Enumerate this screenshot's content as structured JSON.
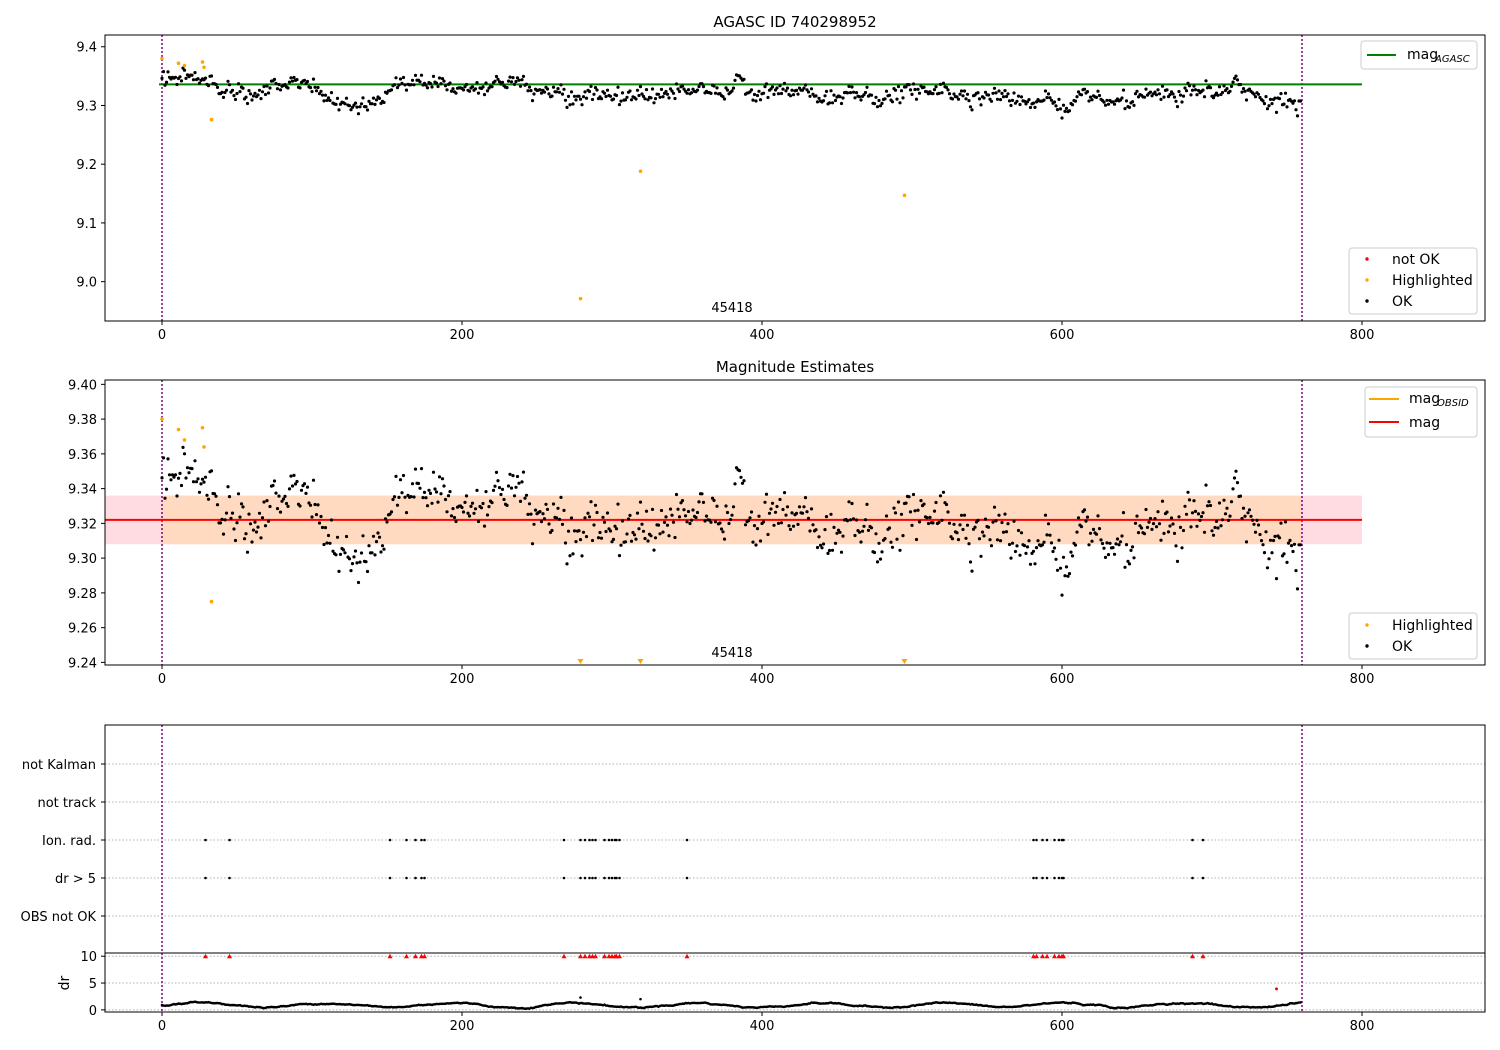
{
  "figure": {
    "panel1_title": "AGASC ID 740298952",
    "panel2_title": "Magnitude Estimates",
    "obsid_label": "45418",
    "colors": {
      "ok": "#000000",
      "highlighted": "#ffa500",
      "not_ok": "#ff0000",
      "mag_agasc": "#008000",
      "mag_obsid": "#ffa500",
      "mag": "#ff0000",
      "band": "#ffc0cb",
      "band_inner": "#ffdab9",
      "obs_boundary": "#800080"
    }
  },
  "legend1": {
    "line_label": "mag",
    "line_sub": "AGASC",
    "markers": [
      "not OK",
      "Highlighted",
      "OK"
    ]
  },
  "legend2": {
    "line1_label": "mag",
    "line1_sub": "OBSID",
    "line2_label": "mag",
    "markers": [
      "Highlighted",
      "OK"
    ]
  },
  "chart_data": [
    {
      "type": "scatter",
      "title": "AGASC ID 740298952",
      "x_ticks": [
        0,
        200,
        400,
        600,
        800
      ],
      "y_ticks": [
        "9.0",
        "9.1",
        "9.2",
        "9.3",
        "9.4"
      ],
      "xlim": [
        -38,
        882
      ],
      "ylim": [
        8.933,
        9.42
      ],
      "mag_agasc": 9.336,
      "obs_boundaries": [
        0,
        760
      ],
      "highlighted_points": [
        [
          0,
          9.38
        ],
        [
          11,
          9.372
        ],
        [
          15,
          9.368
        ],
        [
          27,
          9.374
        ],
        [
          28,
          9.365
        ],
        [
          33,
          9.276
        ],
        [
          279,
          8.971
        ],
        [
          319,
          9.188
        ],
        [
          495,
          9.147
        ]
      ],
      "ok_series": {
        "x_range": [
          0,
          760
        ],
        "count": 760,
        "profile": [
          [
            0,
            9.352
          ],
          [
            20,
            9.342
          ],
          [
            60,
            9.318
          ],
          [
            90,
            9.34
          ],
          [
            110,
            9.31
          ],
          [
            130,
            9.305
          ],
          [
            160,
            9.342
          ],
          [
            180,
            9.343
          ],
          [
            210,
            9.333
          ],
          [
            240,
            9.325
          ],
          [
            270,
            9.318
          ],
          [
            300,
            9.315
          ],
          [
            330,
            9.312
          ],
          [
            370,
            9.332
          ],
          [
            400,
            9.322
          ],
          [
            440,
            9.31
          ],
          [
            480,
            9.314
          ],
          [
            520,
            9.325
          ],
          [
            560,
            9.318
          ],
          [
            600,
            9.306
          ],
          [
            640,
            9.305
          ],
          [
            680,
            9.314
          ],
          [
            720,
            9.33
          ],
          [
            745,
            9.305
          ],
          [
            760,
            9.315
          ]
        ]
      }
    },
    {
      "type": "scatter",
      "title": "Magnitude Estimates",
      "x_ticks": [
        0,
        200,
        400,
        600,
        800
      ],
      "y_ticks": [
        "9.24",
        "9.26",
        "9.28",
        "9.30",
        "9.32",
        "9.34",
        "9.36",
        "9.38",
        "9.40"
      ],
      "xlim": [
        -38,
        882
      ],
      "ylim": [
        9.2385,
        9.4025
      ],
      "mag": 9.322,
      "mag_obsid": 9.322,
      "mag_band": [
        9.308,
        9.336
      ],
      "band_inner_x": [
        0,
        760
      ],
      "obs_boundaries": [
        0,
        760
      ],
      "highlighted_points": [
        [
          0,
          9.38
        ],
        [
          11,
          9.374
        ],
        [
          15,
          9.368
        ],
        [
          27,
          9.375
        ],
        [
          28,
          9.364
        ],
        [
          33,
          9.275
        ]
      ],
      "highlighted_below_range_x": [
        279,
        319,
        495
      ]
    },
    {
      "type": "scatter",
      "categories": [
        "not Kalman",
        "not track",
        "Ion. rad.",
        "dr > 5",
        "OBS not OK"
      ],
      "ion_rad_x": [
        29,
        45,
        152,
        163,
        169,
        173,
        175,
        268,
        279,
        282,
        285,
        287,
        289,
        295,
        298,
        300,
        302,
        303,
        305,
        350,
        581,
        583,
        587,
        590,
        595,
        598,
        600,
        601,
        687,
        694
      ],
      "dr_gt5_x": [
        29,
        45,
        152,
        163,
        169,
        173,
        175,
        268,
        279,
        282,
        285,
        287,
        289,
        295,
        298,
        300,
        302,
        303,
        305,
        350,
        581,
        583,
        587,
        590,
        595,
        598,
        600,
        601,
        687,
        694
      ]
    },
    {
      "type": "scatter",
      "ylabel": "dr",
      "y_ticks": [
        "0",
        "5",
        "10"
      ],
      "ylim": [
        -0.4,
        10.6
      ],
      "capped_x": [
        29,
        45,
        152,
        163,
        169,
        173,
        175,
        268,
        279,
        282,
        285,
        287,
        289,
        295,
        298,
        300,
        302,
        303,
        305,
        350,
        581,
        583,
        587,
        590,
        595,
        598,
        600,
        601,
        687,
        694
      ],
      "capped_value": 10,
      "not_ok_points": [
        [
          743,
          3.9
        ]
      ],
      "outliers": [
        [
          279,
          2.3
        ],
        [
          319,
          2.0
        ]
      ]
    }
  ]
}
